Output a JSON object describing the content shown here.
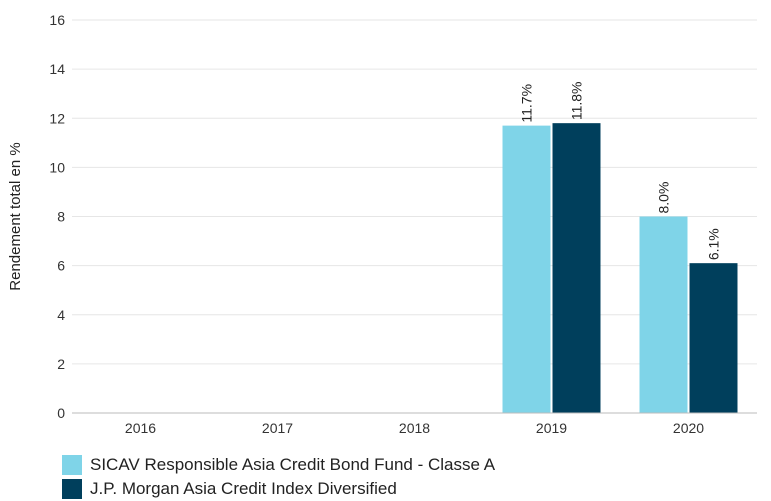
{
  "chart_data": {
    "type": "bar",
    "ylabel": "Rendement total en %",
    "xlabel": "",
    "title": "",
    "categories": [
      "2016",
      "2017",
      "2018",
      "2019",
      "2020"
    ],
    "ylim": [
      0,
      16
    ],
    "yticks": [
      0,
      2,
      4,
      6,
      8,
      10,
      12,
      14,
      16
    ],
    "grid": true,
    "legend_position": "bottom-left",
    "series": [
      {
        "name": "SICAV Responsible Asia Credit Bond Fund - Classe A",
        "color": "#7fd4e8",
        "values": [
          null,
          null,
          null,
          11.7,
          8.0
        ],
        "labels": [
          "",
          "",
          "",
          "11.7%",
          "8.0%"
        ]
      },
      {
        "name": "J.P. Morgan Asia Credit Index Diversified",
        "color": "#003f5c",
        "values": [
          null,
          null,
          null,
          11.8,
          6.1
        ],
        "labels": [
          "",
          "",
          "",
          "11.8%",
          "6.1%"
        ]
      }
    ]
  }
}
